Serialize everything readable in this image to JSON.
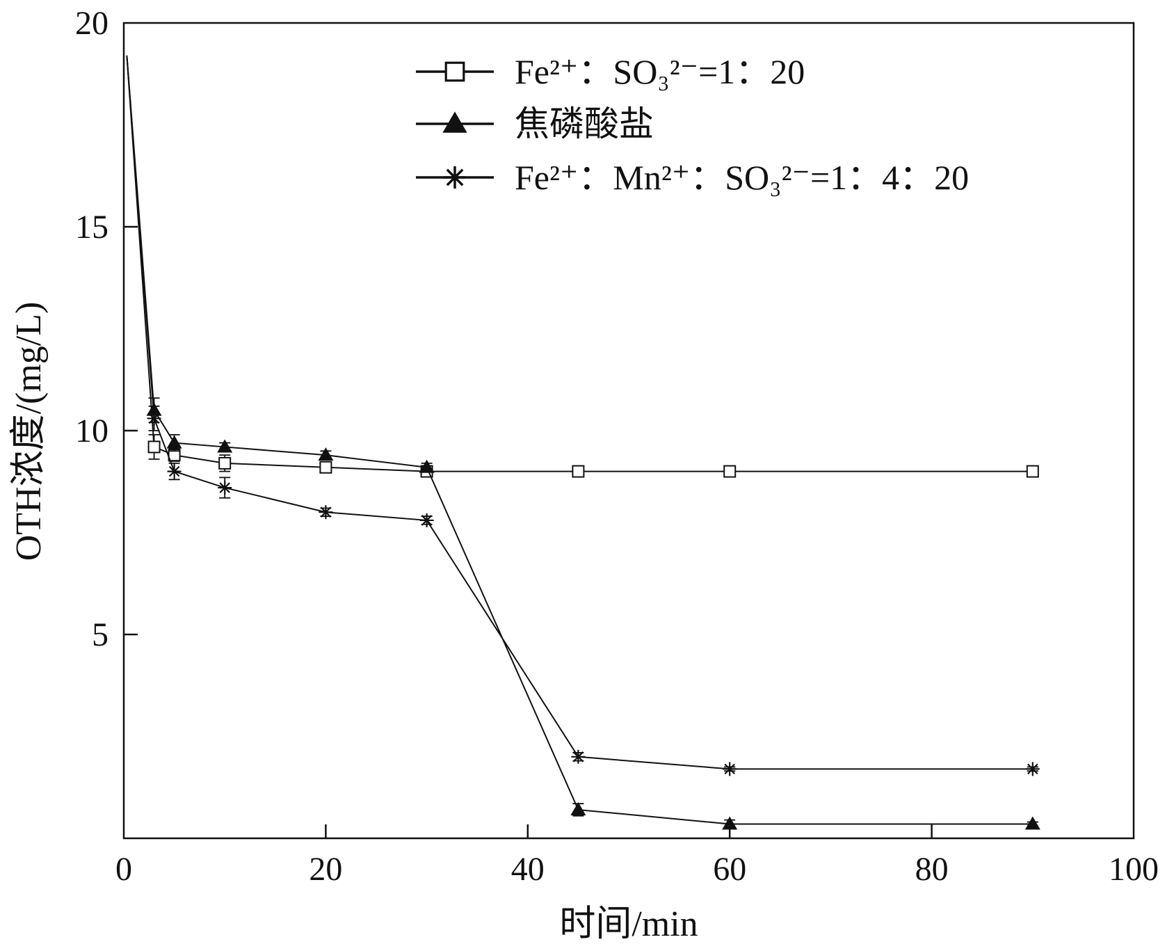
{
  "chart_data": {
    "type": "line",
    "title": "",
    "xlabel": "时间/min",
    "ylabel": "OTH浓度/(mg/L)",
    "xlim": [
      0,
      100
    ],
    "ylim": [
      0,
      20
    ],
    "xticks": [
      0,
      20,
      40,
      60,
      80,
      100
    ],
    "yticks": [
      5,
      10,
      15,
      20
    ],
    "grid": false,
    "legend_position": "top-right",
    "series": [
      {
        "name": "Fe²⁺：SO₃²⁻=1：20",
        "marker": "square-open",
        "x": [
          0.3,
          3,
          5,
          10,
          20,
          30,
          45,
          60,
          90
        ],
        "y": [
          19.2,
          9.6,
          9.4,
          9.2,
          9.1,
          9.0,
          9.0,
          9.0,
          9.0
        ],
        "error": [
          0,
          0.3,
          0.15,
          0.2,
          0.1,
          0.1,
          0.05,
          0.05,
          0.05
        ]
      },
      {
        "name": "焦磷酸盐",
        "marker": "triangle-filled",
        "x": [
          0.3,
          3,
          5,
          10,
          20,
          30,
          45,
          60,
          90
        ],
        "y": [
          19.2,
          10.5,
          9.7,
          9.6,
          9.4,
          9.1,
          0.7,
          0.35,
          0.35
        ],
        "error": [
          0,
          0.3,
          0.2,
          0.1,
          0.1,
          0.1,
          0.15,
          0.1,
          0.05
        ]
      },
      {
        "name": "Fe²⁺：Mn²⁺：SO₃²⁻=1：4：20",
        "marker": "asterisk",
        "x": [
          0.3,
          3,
          5,
          10,
          20,
          30,
          45,
          60,
          90
        ],
        "y": [
          19.2,
          10.3,
          9.0,
          8.6,
          8.0,
          7.8,
          2.0,
          1.7,
          1.7
        ],
        "error": [
          0,
          0.3,
          0.2,
          0.25,
          0.1,
          0.1,
          0.1,
          0.05,
          0.05
        ]
      }
    ]
  }
}
